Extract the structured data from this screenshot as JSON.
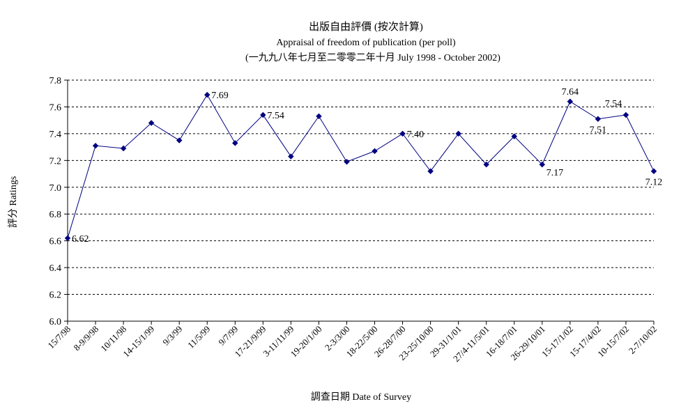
{
  "chart_data": {
    "type": "line",
    "title": "出版自由評價 (按次計算)",
    "subtitle": "Appraisal of freedom of publication (per poll)",
    "subtitle2": "(一九九八年七月至二零零二年十月 July 1998 - October 2002)",
    "xlabel": "調查日期 Date of Survey",
    "ylabel": "評分 Ratings",
    "ylim": [
      6.0,
      7.8
    ],
    "yticks": [
      "6.0",
      "6.2",
      "6.4",
      "6.6",
      "6.8",
      "7.0",
      "7.2",
      "7.4",
      "7.6",
      "7.8"
    ],
    "grid": true,
    "categories": [
      "15/7/98",
      "8-9/9/98",
      "10/11/98",
      "14-15/1/99",
      "9/3/99",
      "11/5/99",
      "9/7/99",
      "17-21/9/99",
      "3-11/11/99",
      "19-20/1/00",
      "2-3/3/00",
      "18-22/5/00",
      "26-28/7/00",
      "23-25/10/00",
      "29-31/1/01",
      "27/4-11/5/01",
      "16-18/7/01",
      "26-29/10/01",
      "15-17/1/02",
      "15-17/4/02",
      "10-15/7/02",
      "2-7/10/02"
    ],
    "series": [
      {
        "name": "Ratings",
        "color": "#000080",
        "values": [
          6.62,
          7.31,
          7.29,
          7.48,
          7.35,
          7.69,
          7.33,
          7.54,
          7.23,
          7.53,
          7.19,
          7.27,
          7.4,
          7.12,
          7.4,
          7.17,
          7.38,
          7.17,
          7.64,
          7.51,
          7.54,
          7.12
        ]
      }
    ],
    "data_labels": [
      {
        "index": 0,
        "text": "6.62",
        "pos": "right"
      },
      {
        "index": 5,
        "text": "7.69",
        "pos": "right"
      },
      {
        "index": 7,
        "text": "7.54",
        "pos": "right"
      },
      {
        "index": 12,
        "text": "7.40",
        "pos": "right"
      },
      {
        "index": 17,
        "text": "7.17",
        "pos": "below-right"
      },
      {
        "index": 18,
        "text": "7.64",
        "pos": "above"
      },
      {
        "index": 19,
        "text": "7.51",
        "pos": "below"
      },
      {
        "index": 20,
        "text": "7.54",
        "pos": "above-left"
      },
      {
        "index": 21,
        "text": "7.12",
        "pos": "below"
      }
    ]
  }
}
